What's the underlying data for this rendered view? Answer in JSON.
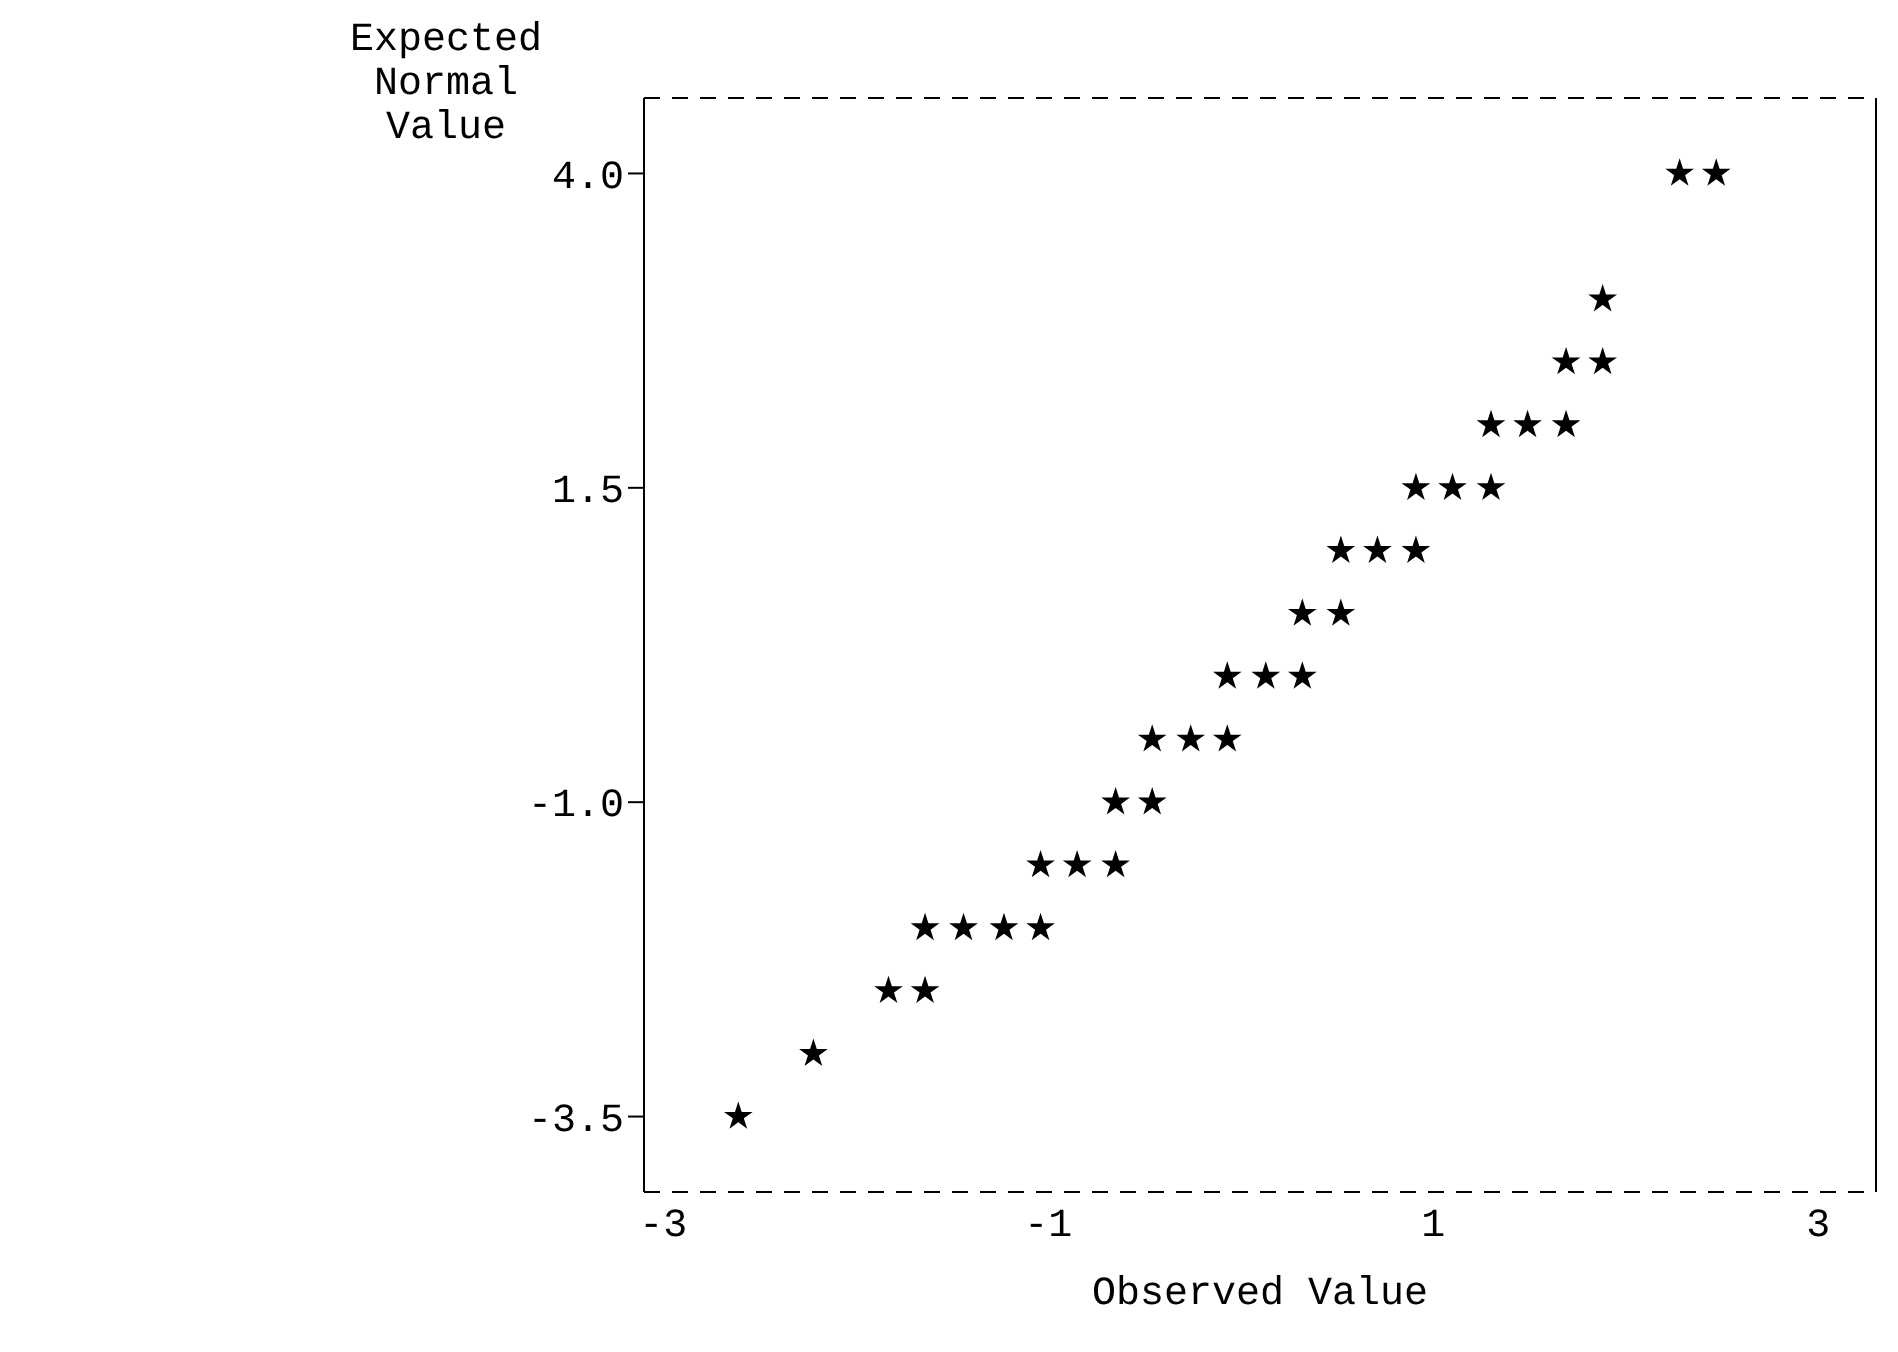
{
  "chart_data": {
    "type": "scatter",
    "xlabel": "Observed Value",
    "ylabel": "Expected Normal Value",
    "xlim": [
      -3.1,
      3.3
    ],
    "ylim": [
      -4.1,
      4.6
    ],
    "xticks": [
      -3,
      -1,
      1,
      3
    ],
    "yticks": [
      {
        "value": 4,
        "label": "4.0"
      },
      {
        "value": 1.5,
        "label": "1.5"
      },
      {
        "value": -1,
        "label": "-1.0"
      },
      {
        "value": -3.5,
        "label": "-3.5"
      }
    ],
    "marker": "star",
    "grid": false,
    "series": [
      {
        "color": "#000000",
        "x": [
          -2.61,
          -2.22,
          -1.83,
          -1.64,
          -1.64,
          -1.44,
          -1.23,
          -1.04,
          -1.04,
          -0.85,
          -0.65,
          -0.65,
          -0.46,
          -0.46,
          -0.26,
          -0.07,
          -0.07,
          0.13,
          0.32,
          0.32,
          0.52,
          0.52,
          0.71,
          0.91,
          0.91,
          1.1,
          1.3,
          1.3,
          1.49,
          1.69,
          1.69,
          1.88,
          1.88,
          2.28,
          2.47
        ],
        "values": [
          -3.5,
          -3.0,
          -2.5,
          -2.5,
          -2.0,
          -2.0,
          -2.0,
          -2.0,
          -1.5,
          -1.5,
          -1.5,
          -1.0,
          -1.0,
          -0.5,
          -0.5,
          -0.5,
          0,
          0,
          0,
          0.5,
          0.5,
          1.0,
          1.0,
          1.0,
          1.5,
          1.5,
          1.5,
          2.0,
          2.0,
          2.0,
          2.5,
          2.5,
          3.0,
          4.0,
          4.0
        ]
      }
    ]
  }
}
